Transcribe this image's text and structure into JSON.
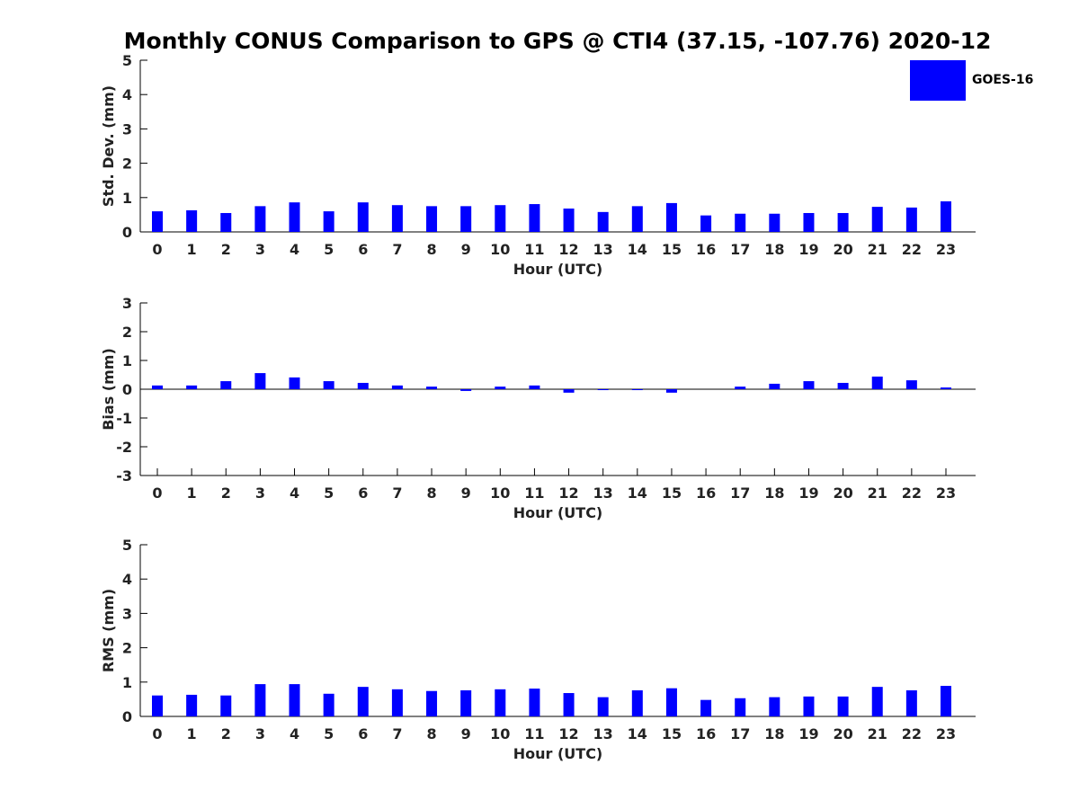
{
  "title": "Monthly CONUS Comparison to GPS @ CTI4 (37.15, -107.76) 2020-12",
  "legend": {
    "label": "GOES-16",
    "color": "#0000ff"
  },
  "chart_data": [
    {
      "type": "bar",
      "title": "",
      "xlabel": "Hour (UTC)",
      "ylabel": "Std. Dev. (mm)",
      "ylim": [
        0,
        5
      ],
      "yticks": [
        "0",
        "1",
        "2",
        "3",
        "4",
        "5"
      ],
      "categories": [
        "0",
        "1",
        "2",
        "3",
        "4",
        "5",
        "6",
        "7",
        "8",
        "9",
        "10",
        "11",
        "12",
        "13",
        "14",
        "15",
        "16",
        "17",
        "18",
        "19",
        "20",
        "21",
        "22",
        "23"
      ],
      "series": [
        {
          "name": "GOES-16",
          "color": "#0000ff",
          "values": [
            0.6,
            0.63,
            0.55,
            0.75,
            0.86,
            0.6,
            0.86,
            0.78,
            0.75,
            0.75,
            0.78,
            0.81,
            0.68,
            0.58,
            0.75,
            0.84,
            0.48,
            0.53,
            0.53,
            0.55,
            0.55,
            0.73,
            0.71,
            0.89
          ]
        }
      ]
    },
    {
      "type": "bar",
      "title": "",
      "xlabel": "Hour (UTC)",
      "ylabel": "Bias (mm)",
      "ylim": [
        -3,
        3
      ],
      "yticks": [
        "-3",
        "-2",
        "-1",
        "0",
        "1",
        "2",
        "3"
      ],
      "categories": [
        "0",
        "1",
        "2",
        "3",
        "4",
        "5",
        "6",
        "7",
        "8",
        "9",
        "10",
        "11",
        "12",
        "13",
        "14",
        "15",
        "16",
        "17",
        "18",
        "19",
        "20",
        "21",
        "22",
        "23"
      ],
      "series": [
        {
          "name": "GOES-16",
          "color": "#0000ff",
          "values": [
            0.13,
            0.13,
            0.28,
            0.56,
            0.41,
            0.28,
            0.22,
            0.13,
            0.09,
            -0.06,
            0.09,
            0.13,
            -0.12,
            -0.02,
            -0.02,
            -0.12,
            0.0,
            0.09,
            0.19,
            0.28,
            0.22,
            0.44,
            0.31,
            0.06
          ]
        }
      ]
    },
    {
      "type": "bar",
      "title": "",
      "xlabel": "Hour (UTC)",
      "ylabel": "RMS (mm)",
      "ylim": [
        0,
        5
      ],
      "yticks": [
        "0",
        "1",
        "2",
        "3",
        "4",
        "5"
      ],
      "categories": [
        "0",
        "1",
        "2",
        "3",
        "4",
        "5",
        "6",
        "7",
        "8",
        "9",
        "10",
        "11",
        "12",
        "13",
        "14",
        "15",
        "16",
        "17",
        "18",
        "19",
        "20",
        "21",
        "22",
        "23"
      ],
      "series": [
        {
          "name": "GOES-16",
          "color": "#0000ff",
          "values": [
            0.61,
            0.63,
            0.61,
            0.94,
            0.94,
            0.66,
            0.86,
            0.79,
            0.74,
            0.76,
            0.79,
            0.81,
            0.68,
            0.56,
            0.76,
            0.82,
            0.48,
            0.53,
            0.56,
            0.58,
            0.58,
            0.86,
            0.76,
            0.89
          ]
        }
      ]
    }
  ]
}
